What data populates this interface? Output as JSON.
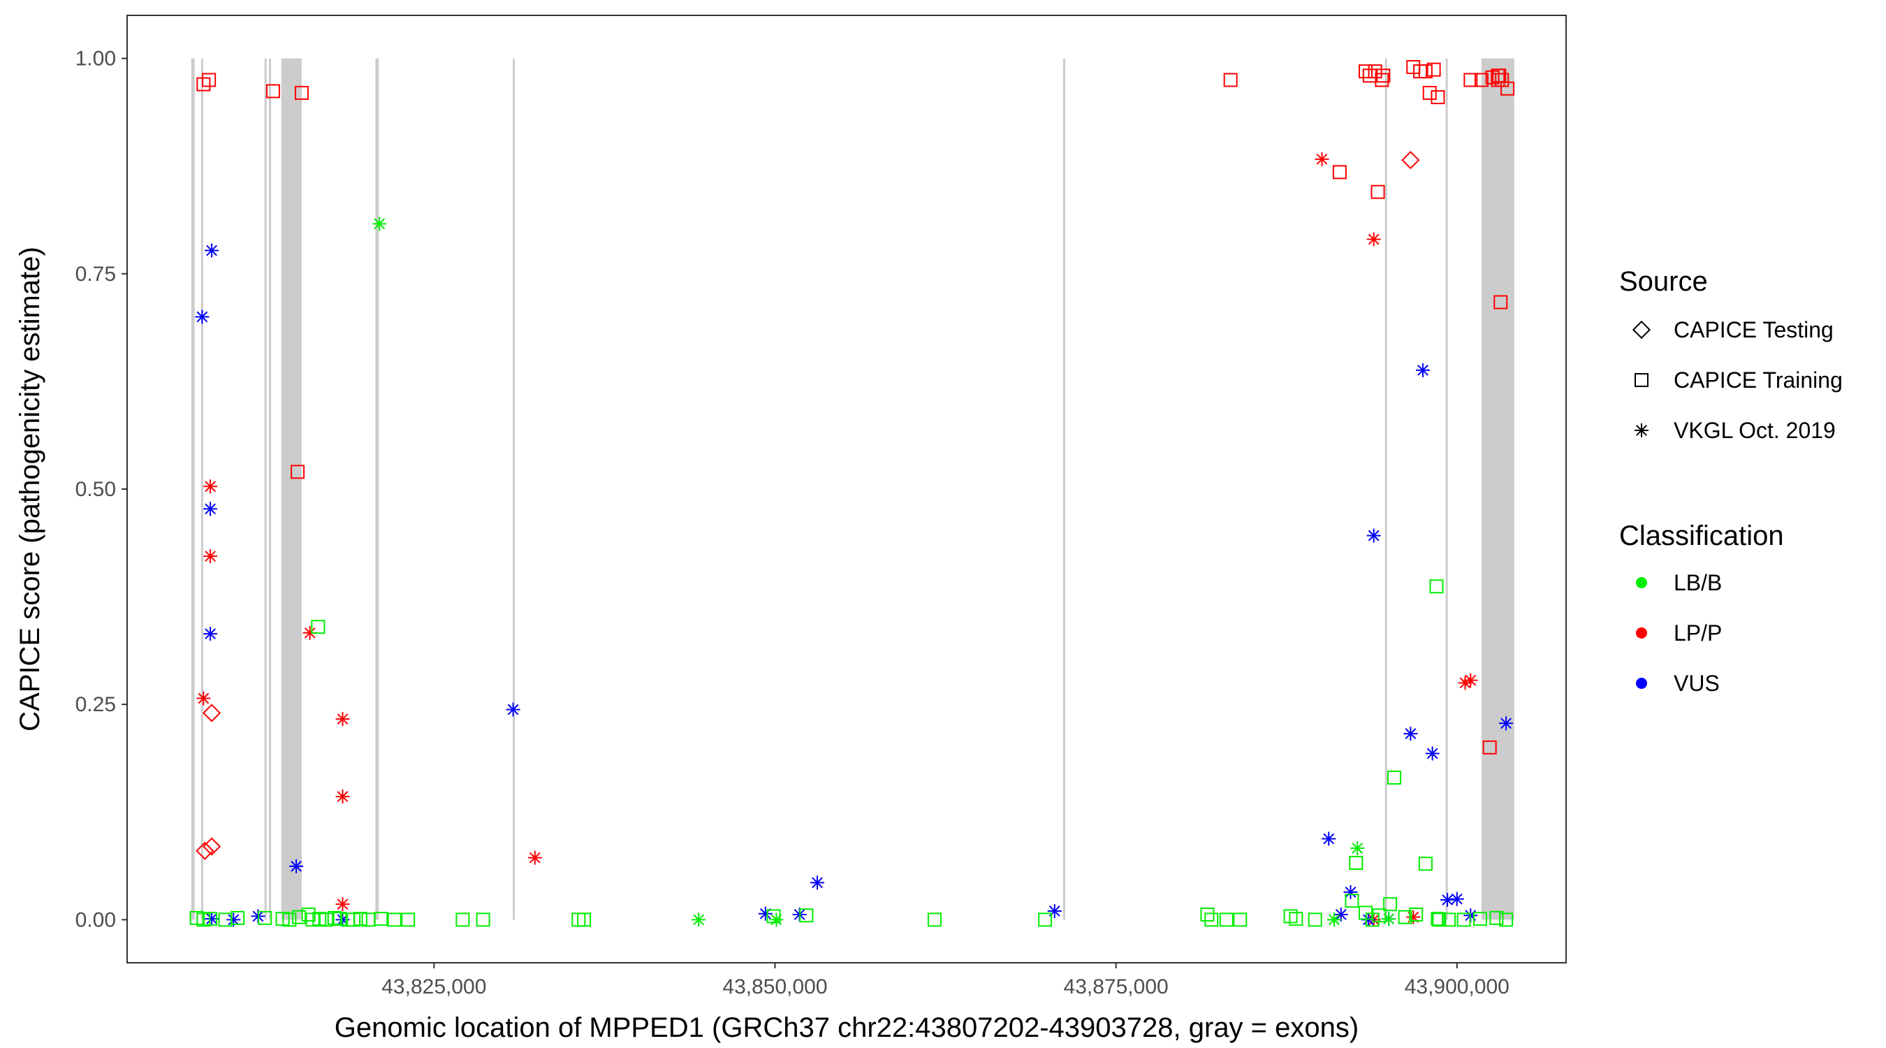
{
  "chart_data": {
    "type": "scatter",
    "xlabel": "Genomic location of MPPED1 (GRCh37 chr22:43807202-43903728, gray = exons)",
    "ylabel": "CAPICE score (pathogenicity estimate)",
    "xlim": [
      43802500,
      43908000
    ],
    "ylim": [
      -0.05,
      1.05
    ],
    "x_ticks": [
      43825000,
      43850000,
      43875000,
      43900000
    ],
    "x_tick_labels": [
      "43,825,000",
      "43,850,000",
      "43,875,000",
      "43,900,000"
    ],
    "y_ticks": [
      0,
      0.25,
      0.5,
      0.75,
      1.0
    ],
    "y_tick_labels": [
      "0.00",
      "0.25",
      "0.50",
      "0.75",
      "1.00"
    ],
    "grid": false,
    "exons": [
      [
        43807200,
        43807450
      ],
      [
        43807950,
        43808050
      ],
      [
        43812600,
        43812700
      ],
      [
        43812900,
        43813050
      ],
      [
        43813800,
        43815300
      ],
      [
        43820700,
        43820950
      ],
      [
        43830800,
        43830900
      ],
      [
        43871150,
        43871250
      ],
      [
        43894750,
        43894850
      ],
      [
        43899200,
        43899300
      ],
      [
        43901800,
        43904200
      ]
    ],
    "legend_source": {
      "title": "Source",
      "items": [
        {
          "label": "CAPICE Testing",
          "shape": "diamond"
        },
        {
          "label": "CAPICE Training",
          "shape": "square"
        },
        {
          "label": "VKGL Oct. 2019",
          "shape": "asterisk"
        }
      ]
    },
    "legend_class": {
      "title": "Classification",
      "items": [
        {
          "label": "LB/B",
          "color": "#00ee00"
        },
        {
          "label": "LP/P",
          "color": "#ff0000"
        },
        {
          "label": "VUS",
          "color": "#0000ff"
        }
      ]
    },
    "legend_position": "right",
    "series": [
      {
        "source": "CAPICE Training",
        "classification": "LP/P",
        "shape": "square",
        "color": "#ff0000",
        "x": [
          43808100,
          43808500,
          43813200,
          43815300,
          43815000,
          43883400,
          43891400,
          43893300,
          43893600,
          43894000,
          43894200,
          43894600,
          43894500,
          43896800,
          43897300,
          43897700,
          43898000,
          43898300,
          43898600,
          43901000,
          43901800,
          43902600,
          43903000,
          43903300,
          43903100,
          43903700,
          43903200,
          43902400,
          43903000
        ],
        "y": [
          0.97,
          0.975,
          0.962,
          0.96,
          0.52,
          0.975,
          0.868,
          0.985,
          0.98,
          0.985,
          0.845,
          0.98,
          0.975,
          0.99,
          0.985,
          0.985,
          0.96,
          0.987,
          0.955,
          0.975,
          0.975,
          0.978,
          0.98,
          0.975,
          0.98,
          0.965,
          0.717,
          0.2,
          0.975
        ]
      },
      {
        "source": "CAPICE Testing",
        "classification": "LP/P",
        "shape": "diamond",
        "color": "#ff0000",
        "x": [
          43808700,
          43808200,
          43808700,
          43896600
        ],
        "y": [
          0.24,
          0.08,
          0.085,
          0.882
        ]
      },
      {
        "source": "VKGL Oct. 2019",
        "classification": "LP/P",
        "shape": "asterisk",
        "color": "#ff0000",
        "x": [
          43808600,
          43808600,
          43808100,
          43815900,
          43818300,
          43818300,
          43818300,
          43832400,
          43890100,
          43893900,
          43893900,
          43900600,
          43901000,
          43896800
        ],
        "y": [
          0.503,
          0.422,
          0.257,
          0.333,
          0.233,
          0.143,
          0.018,
          0.072,
          0.883,
          0.79,
          0.0,
          0.275,
          0.278,
          0.003
        ]
      },
      {
        "source": "VKGL Oct. 2019",
        "classification": "VUS",
        "shape": "asterisk",
        "color": "#0000ff",
        "x": [
          43808700,
          43808000,
          43808600,
          43808600,
          43814900,
          43808700,
          43830800,
          43849300,
          43851800,
          43853100,
          43870500,
          43890600,
          43891500,
          43893900,
          43897500,
          43896600,
          43898200,
          43892200,
          43899300,
          43900000,
          43903600,
          43901000,
          43812100,
          43810300,
          43818300,
          43895000,
          43893500
        ],
        "y": [
          0.777,
          0.7,
          0.477,
          0.332,
          0.062,
          0.001,
          0.244,
          0.007,
          0.006,
          0.043,
          0.01,
          0.094,
          0.006,
          0.446,
          0.638,
          0.216,
          0.193,
          0.032,
          0.023,
          0.024,
          0.228,
          0.005,
          0.004,
          0.0,
          0.0,
          0.001,
          0.0
        ]
      },
      {
        "source": "VKGL Oct. 2019",
        "classification": "LB/B",
        "shape": "asterisk",
        "color": "#00ee00",
        "x": [
          43821000,
          43844400,
          43850100,
          43892700,
          43891000,
          43895000,
          43891000
        ],
        "y": [
          0.808,
          0.0,
          0.0,
          0.083,
          0.0,
          0.001,
          0.0
        ]
      },
      {
        "source": "CAPICE Training",
        "classification": "LB/B",
        "shape": "square",
        "color": "#00ee00",
        "x": [
          43807600,
          43808100,
          43808600,
          43809700,
          43810600,
          43812600,
          43813900,
          43814400,
          43815100,
          43815800,
          43816100,
          43816600,
          43817100,
          43817700,
          43818100,
          43818700,
          43819100,
          43819600,
          43820200,
          43821100,
          43822100,
          43823100,
          43827100,
          43828600,
          43835600,
          43836000,
          43852300,
          43861700,
          43869800,
          43881700,
          43882000,
          43883100,
          43884100,
          43887800,
          43888200,
          43889600,
          43892600,
          43893800,
          43895400,
          43897700,
          43898500,
          43899400,
          43900500,
          43901700,
          43902900,
          43903600,
          43816500,
          43895100,
          43892300,
          43894300,
          43898700,
          43898600,
          43849900,
          43893300,
          43896200,
          43897000
        ],
        "y": [
          0.002,
          0.0,
          0.001,
          0.0,
          0.002,
          0.002,
          0.001,
          0.0,
          0.003,
          0.006,
          0.0,
          0.001,
          0.0,
          0.002,
          0.001,
          0.0,
          0.0,
          0.001,
          0.0,
          0.001,
          0.0,
          0.0,
          0.0,
          0.0,
          0.0,
          0.0,
          0.005,
          0.0,
          0.0,
          0.006,
          0.0,
          0.0,
          0.0,
          0.004,
          0.001,
          0.0,
          0.066,
          0.0,
          0.165,
          0.065,
          0.387,
          0.0,
          0.0,
          0.001,
          0.002,
          0.0,
          0.34,
          0.018,
          0.022,
          0.005,
          0.0,
          0.001,
          0.004,
          0.008,
          0.003,
          0.006
        ]
      }
    ]
  }
}
